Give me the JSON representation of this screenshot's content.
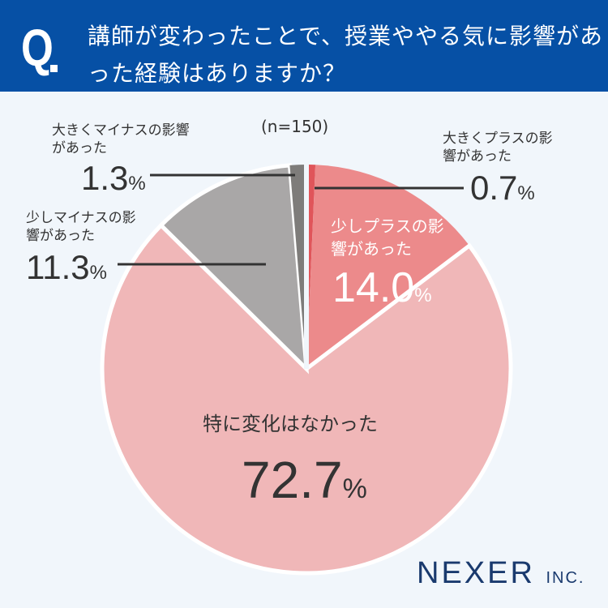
{
  "header": {
    "q": "Q",
    "title": "講師が変わったことで、授業ややる気に影響があった経験はありますか？"
  },
  "sample": "(n=150)",
  "logo": {
    "main": "NEXER",
    "sub": "INC."
  },
  "chart_data": {
    "type": "pie",
    "title": "講師が変わったことで、授業ややる気に影響があった経験はありますか？",
    "slices": [
      {
        "label": "大きくプラスの影響があった",
        "value": 0.7,
        "color": "#e0555a"
      },
      {
        "label": "少しプラスの影響があった",
        "value": 14.0,
        "color": "#ec8a8b"
      },
      {
        "label": "特に変化はなかった",
        "value": 72.7,
        "color": "#f0b7b8"
      },
      {
        "label": "少しマイナスの影響があった",
        "value": 11.3,
        "color": "#a9a7a7"
      },
      {
        "label": "大きくマイナスの影響があった",
        "value": 1.3,
        "color": "#7e7c7a"
      }
    ],
    "pct": [
      "0.7",
      "14.0",
      "72.7",
      "11.3",
      "1.3"
    ],
    "unit": "%"
  }
}
